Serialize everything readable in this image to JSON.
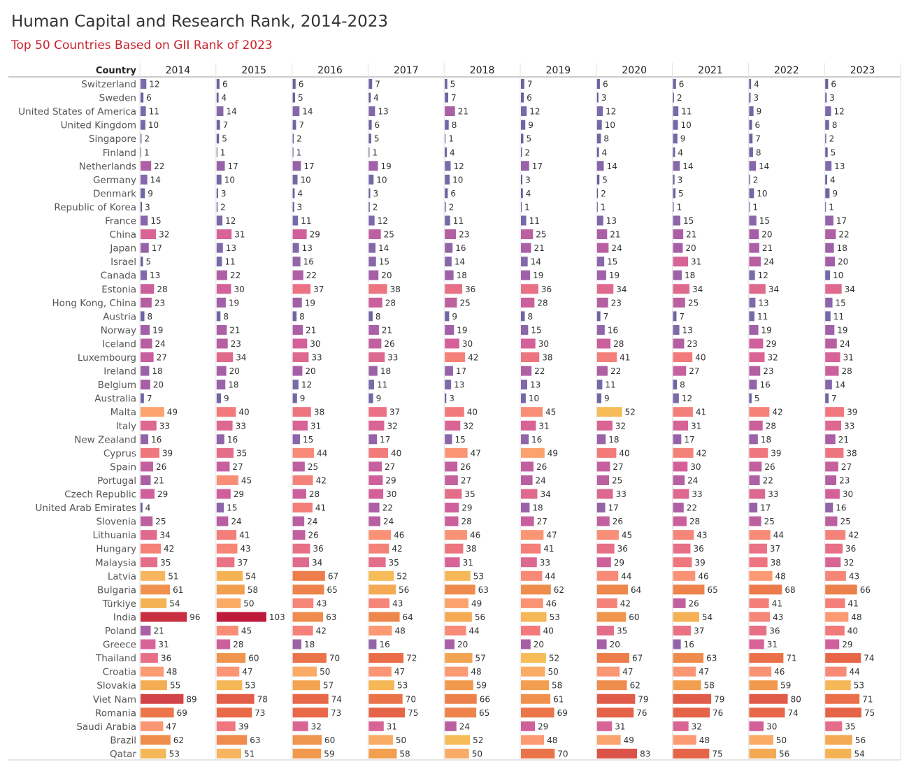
{
  "title": "Human Capital and Research Rank, 2014-2023",
  "subtitle": "Top 50 Countries Based on GII Rank of 2023",
  "chart_data": {
    "type": "bar",
    "orientation": "horizontal",
    "row_header": "Country",
    "years": [
      "2014",
      "2015",
      "2016",
      "2017",
      "2018",
      "2019",
      "2020",
      "2021",
      "2022",
      "2023"
    ],
    "countries": [
      "Switzerland",
      "Sweden",
      "United States of America",
      "United Kingdom",
      "Singapore",
      "Finland",
      "Netherlands",
      "Germany",
      "Denmark",
      "Republic of Korea",
      "France",
      "China",
      "Japan",
      "Israel",
      "Canada",
      "Estonia",
      "Hong Kong, China",
      "Austria",
      "Norway",
      "Iceland",
      "Luxembourg",
      "Ireland",
      "Belgium",
      "Australia",
      "Malta",
      "Italy",
      "New Zealand",
      "Cyprus",
      "Spain",
      "Portugal",
      "Czech Republic",
      "United Arab Emirates",
      "Slovenia",
      "Lithuania",
      "Hungary",
      "Malaysia",
      "Latvia",
      "Bulgaria",
      "Türkiye",
      "India",
      "Poland",
      "Greece",
      "Thailand",
      "Croatia",
      "Slovakia",
      "Viet Nam",
      "Romania",
      "Saudi Arabia",
      "Brazil",
      "Qatar"
    ],
    "values": [
      [
        12,
        6,
        6,
        7,
        5,
        7,
        6,
        6,
        4,
        6
      ],
      [
        6,
        4,
        5,
        4,
        7,
        6,
        3,
        2,
        3,
        3
      ],
      [
        11,
        14,
        14,
        13,
        21,
        12,
        12,
        11,
        9,
        12
      ],
      [
        10,
        7,
        7,
        6,
        8,
        9,
        10,
        10,
        6,
        8
      ],
      [
        2,
        5,
        2,
        5,
        1,
        5,
        8,
        9,
        7,
        2
      ],
      [
        1,
        1,
        1,
        1,
        4,
        2,
        4,
        4,
        8,
        5
      ],
      [
        22,
        17,
        17,
        19,
        12,
        17,
        14,
        14,
        14,
        13
      ],
      [
        14,
        10,
        10,
        10,
        10,
        3,
        5,
        3,
        2,
        4
      ],
      [
        9,
        3,
        4,
        3,
        6,
        4,
        2,
        5,
        10,
        9
      ],
      [
        3,
        2,
        3,
        2,
        2,
        1,
        1,
        1,
        1,
        1
      ],
      [
        15,
        12,
        11,
        12,
        11,
        11,
        13,
        15,
        15,
        17
      ],
      [
        32,
        31,
        29,
        25,
        23,
        25,
        21,
        21,
        20,
        22
      ],
      [
        17,
        13,
        13,
        14,
        16,
        21,
        24,
        20,
        21,
        18
      ],
      [
        5,
        11,
        16,
        15,
        14,
        14,
        15,
        31,
        24,
        20
      ],
      [
        13,
        22,
        22,
        20,
        18,
        19,
        19,
        18,
        12,
        10
      ],
      [
        28,
        30,
        37,
        38,
        36,
        36,
        34,
        34,
        34,
        34
      ],
      [
        23,
        19,
        19,
        28,
        25,
        28,
        23,
        25,
        13,
        15
      ],
      [
        8,
        8,
        8,
        8,
        9,
        8,
        7,
        7,
        11,
        11
      ],
      [
        19,
        21,
        21,
        21,
        19,
        15,
        16,
        13,
        19,
        19
      ],
      [
        24,
        23,
        30,
        26,
        30,
        30,
        28,
        23,
        29,
        24
      ],
      [
        27,
        34,
        33,
        33,
        42,
        38,
        41,
        40,
        32,
        31
      ],
      [
        18,
        20,
        20,
        18,
        17,
        22,
        22,
        27,
        23,
        28
      ],
      [
        20,
        18,
        12,
        11,
        13,
        13,
        11,
        8,
        16,
        14
      ],
      [
        7,
        9,
        9,
        9,
        3,
        10,
        9,
        12,
        5,
        7
      ],
      [
        49,
        40,
        38,
        37,
        40,
        45,
        52,
        41,
        42,
        39
      ],
      [
        33,
        33,
        31,
        32,
        32,
        31,
        32,
        31,
        28,
        33
      ],
      [
        16,
        16,
        15,
        17,
        15,
        16,
        18,
        17,
        18,
        21
      ],
      [
        39,
        35,
        44,
        40,
        47,
        49,
        40,
        42,
        39,
        38
      ],
      [
        26,
        27,
        25,
        27,
        26,
        26,
        27,
        30,
        26,
        27
      ],
      [
        21,
        45,
        42,
        29,
        27,
        24,
        25,
        24,
        22,
        23
      ],
      [
        29,
        29,
        28,
        30,
        35,
        34,
        33,
        33,
        33,
        30
      ],
      [
        4,
        15,
        41,
        22,
        29,
        18,
        17,
        22,
        17,
        16
      ],
      [
        25,
        24,
        24,
        24,
        28,
        27,
        26,
        28,
        25,
        25
      ],
      [
        34,
        41,
        26,
        46,
        46,
        47,
        45,
        43,
        44,
        42
      ],
      [
        42,
        43,
        36,
        42,
        38,
        41,
        36,
        36,
        37,
        36
      ],
      [
        35,
        37,
        34,
        35,
        31,
        33,
        29,
        39,
        38,
        32
      ],
      [
        51,
        54,
        67,
        52,
        53,
        44,
        44,
        46,
        48,
        43
      ],
      [
        61,
        58,
        65,
        56,
        63,
        62,
        64,
        65,
        68,
        66
      ],
      [
        54,
        50,
        43,
        43,
        49,
        46,
        42,
        26,
        41,
        41
      ],
      [
        96,
        103,
        63,
        64,
        56,
        53,
        60,
        54,
        43,
        48
      ],
      [
        21,
        45,
        42,
        48,
        44,
        40,
        35,
        37,
        36,
        40
      ],
      [
        31,
        28,
        18,
        16,
        20,
        20,
        20,
        16,
        31,
        29
      ],
      [
        36,
        60,
        70,
        72,
        57,
        52,
        67,
        63,
        71,
        74
      ],
      [
        48,
        47,
        50,
        47,
        48,
        50,
        47,
        47,
        46,
        44
      ],
      [
        55,
        53,
        57,
        53,
        59,
        58,
        62,
        58,
        59,
        53
      ],
      [
        89,
        78,
        74,
        70,
        66,
        61,
        79,
        79,
        80,
        71
      ],
      [
        69,
        73,
        73,
        75,
        65,
        69,
        76,
        76,
        74,
        75
      ],
      [
        47,
        39,
        32,
        31,
        24,
        29,
        31,
        32,
        30,
        35
      ],
      [
        62,
        63,
        60,
        50,
        52,
        48,
        49,
        48,
        50,
        56
      ],
      [
        53,
        51,
        59,
        58,
        50,
        70,
        83,
        75,
        56,
        54
      ]
    ],
    "color_scale": {
      "description": "bar color encodes rank value",
      "stops": [
        {
          "value": 1,
          "color": "#5a5e96"
        },
        {
          "value": 12,
          "color": "#7b6aaa"
        },
        {
          "value": 20,
          "color": "#a65fa6"
        },
        {
          "value": 30,
          "color": "#d4609a"
        },
        {
          "value": 40,
          "color": "#f37a7a"
        },
        {
          "value": 48,
          "color": "#fc9a74"
        },
        {
          "value": 52,
          "color": "#f7bc58"
        },
        {
          "value": 60,
          "color": "#f0954d"
        },
        {
          "value": 72,
          "color": "#ea6c48"
        },
        {
          "value": 88,
          "color": "#d4474a"
        },
        {
          "value": 103,
          "color": "#be1a3a"
        }
      ]
    },
    "xlim": [
      0,
      110
    ]
  }
}
